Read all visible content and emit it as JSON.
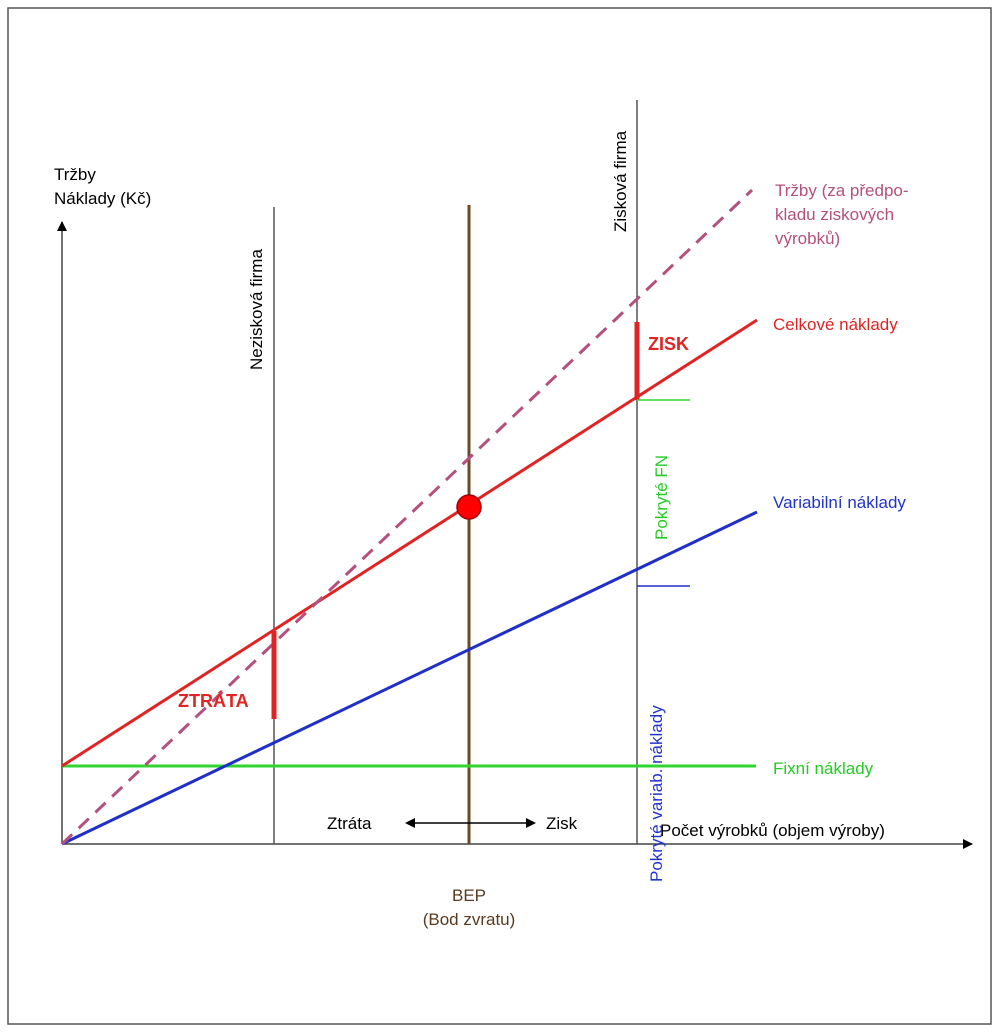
{
  "axes": {
    "y_label_line1": "Tržby",
    "y_label_line2": "Náklady (Kč)",
    "x_label": "Počet výrobků (objem výroby)"
  },
  "verticals": {
    "loss_firm": "Nezisková firma",
    "profit_firm": "Zisková firma"
  },
  "bep": {
    "label_line1": "BEP",
    "label_line2": "(Bod zvratu)"
  },
  "lines": {
    "revenue_line1": "Tržby (za předpo-",
    "revenue_line2": "kladu ziskových",
    "revenue_line3": "výrobků)",
    "total_costs": "Celkové náklady",
    "variable_costs": "Variabilní náklady",
    "fixed_costs": "Fixní náklady"
  },
  "annotations": {
    "profit": "ZISK",
    "loss": "ZTRÁTA",
    "covered_fixed": "Pokryté FN",
    "covered_variable": "Pokryté variab. náklady",
    "arrow_left": "Ztráta",
    "arrow_right": "Zisk"
  },
  "colors": {
    "axis": "#444444",
    "brown": "#6b4a2a",
    "revenue": "#b5507d",
    "total": "#e02424",
    "variable": "#1f2fc8",
    "fixed": "#2fd62f",
    "label_green": "#22cc22",
    "label_blue": "#2233cc",
    "label_brown": "#5a3a1e",
    "label_pink": "#b5507d"
  }
}
